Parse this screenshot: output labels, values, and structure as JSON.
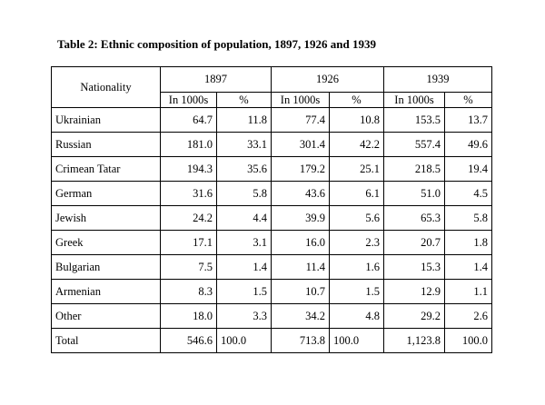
{
  "caption": "Table 2: Ethnic composition of population, 1897, 1926 and 1939",
  "header": {
    "nationality": "Nationality",
    "years": [
      "1897",
      "1926",
      "1939"
    ],
    "sub_in1000s": "In 1000s",
    "sub_pct": "%"
  },
  "rows": [
    {
      "nationality": "Ukrainian",
      "y1897": "64.7",
      "p1897": "11.8",
      "y1926": "77.4",
      "p1926": "10.8",
      "y1939": "153.5",
      "p1939": "13.7"
    },
    {
      "nationality": "Russian",
      "y1897": "181.0",
      "p1897": "33.1",
      "y1926": "301.4",
      "p1926": "42.2",
      "y1939": "557.4",
      "p1939": "49.6"
    },
    {
      "nationality": "Crimean Tatar",
      "y1897": "194.3",
      "p1897": "35.6",
      "y1926": "179.2",
      "p1926": "25.1",
      "y1939": "218.5",
      "p1939": "19.4"
    },
    {
      "nationality": "German",
      "y1897": "31.6",
      "p1897": "5.8",
      "y1926": "43.6",
      "p1926": "6.1",
      "y1939": "51.0",
      "p1939": "4.5"
    },
    {
      "nationality": "Jewish",
      "y1897": "24.2",
      "p1897": "4.4",
      "y1926": "39.9",
      "p1926": "5.6",
      "y1939": "65.3",
      "p1939": "5.8"
    },
    {
      "nationality": "Greek",
      "y1897": "17.1",
      "p1897": "3.1",
      "y1926": "16.0",
      "p1926": "2.3",
      "y1939": "20.7",
      "p1939": "1.8"
    },
    {
      "nationality": "Bulgarian",
      "y1897": "7.5",
      "p1897": "1.4",
      "y1926": "11.4",
      "p1926": "1.6",
      "y1939": "15.3",
      "p1939": "1.4"
    },
    {
      "nationality": "Armenian",
      "y1897": "8.3",
      "p1897": "1.5",
      "y1926": "10.7",
      "p1926": "1.5",
      "y1939": "12.9",
      "p1939": "1.1"
    },
    {
      "nationality": "Other",
      "y1897": "18.0",
      "p1897": "3.3",
      "y1926": "34.2",
      "p1926": "4.8",
      "y1939": "29.2",
      "p1939": "2.6"
    },
    {
      "nationality": "Total",
      "y1897": "546.6",
      "p1897": "100.0",
      "y1926": "713.8",
      "p1926": "100.0",
      "y1939": "1,123.8",
      "p1939": "100.0"
    }
  ]
}
